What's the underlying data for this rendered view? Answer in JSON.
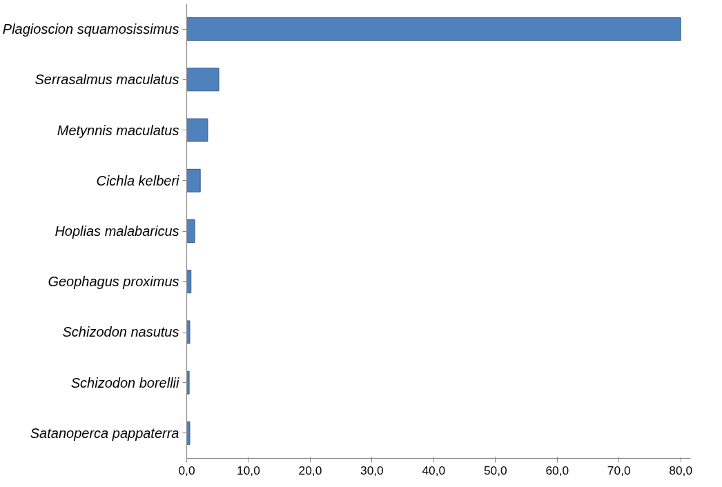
{
  "chart_data": {
    "type": "bar",
    "orientation": "horizontal",
    "categories": [
      "Plagioscion squamosissimus",
      "Serrasalmus maculatus",
      "Metynnis maculatus",
      "Cichla kelberi",
      "Hoplias malabaricus",
      "Geophagus proximus",
      "Schizodon nasutus",
      "Schizodon borellii",
      "Satanoperca pappaterra"
    ],
    "values": [
      80.0,
      5.2,
      3.4,
      2.2,
      1.3,
      0.7,
      0.5,
      0.4,
      0.5
    ],
    "color": "#4f81bd",
    "xlim": [
      0,
      80
    ],
    "xticks": [
      {
        "value": 0,
        "label": "0,0"
      },
      {
        "value": 10,
        "label": "10,0"
      },
      {
        "value": 20,
        "label": "20,0"
      },
      {
        "value": 30,
        "label": "30,0"
      },
      {
        "value": 40,
        "label": "40,0"
      },
      {
        "value": 50,
        "label": "50,0"
      },
      {
        "value": 60,
        "label": "60,0"
      },
      {
        "value": 70,
        "label": "70,0"
      },
      {
        "value": 80,
        "label": "80,0"
      }
    ],
    "grid": false
  }
}
